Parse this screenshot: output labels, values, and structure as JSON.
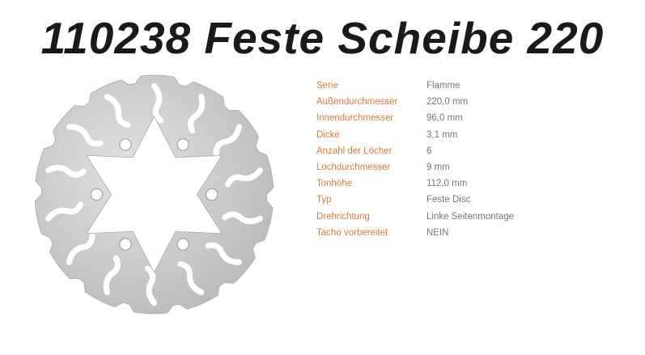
{
  "title": "110238 Feste Scheibe 220",
  "colors": {
    "label": "#e0793f",
    "value": "#777777",
    "disc": "#c8c8c8"
  },
  "product_image": {
    "icon": "brake-disc-image"
  },
  "specs": [
    {
      "label": "Serie",
      "value": "Flamme"
    },
    {
      "label": "Außendurchmesser",
      "value": "220,0 mm"
    },
    {
      "label": "Innendurchmesser",
      "value": "96,0 mm"
    },
    {
      "label": "Dicke",
      "value": "3,1 mm"
    },
    {
      "label": "Anzahl der Löcher",
      "value": "6"
    },
    {
      "label": "Lochdurchmesser",
      "value": "9 mm"
    },
    {
      "label": "Tonhöhe",
      "value": "112,0 mm"
    },
    {
      "label": "Typ",
      "value": "Feste Disc"
    },
    {
      "label": "Drehrichtung",
      "value": "Linke Seitenmontage"
    },
    {
      "label": "Tacho vorbereitet",
      "value": "NEIN"
    }
  ]
}
